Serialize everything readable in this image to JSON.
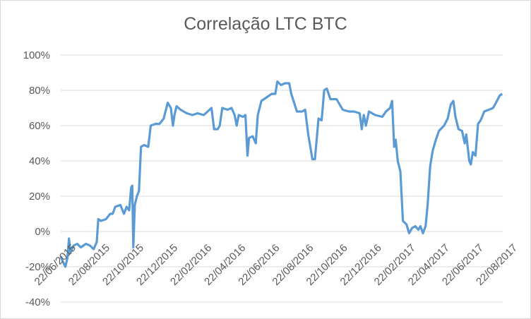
{
  "chart_data": {
    "type": "line",
    "title": "Correlação LTC BTC",
    "xlabel": "",
    "ylabel": "",
    "ylim": [
      -0.4,
      1.0
    ],
    "y_tick_labels": [
      "-40%",
      "-20%",
      "0%",
      "20%",
      "40%",
      "60%",
      "80%",
      "100%"
    ],
    "y_tick_values": [
      -0.4,
      -0.2,
      0.0,
      0.2,
      0.4,
      0.6,
      0.8,
      1.0
    ],
    "x_tick_labels": [
      "22/06/2015",
      "22/08/2015",
      "22/10/2015",
      "22/12/2015",
      "22/02/2016",
      "22/04/2016",
      "22/06/2016",
      "22/08/2016",
      "22/10/2016",
      "22/12/2016",
      "22/02/2017",
      "22/04/2017",
      "22/06/2017",
      "22/08/2017"
    ],
    "grid": true,
    "legend": "none",
    "line_color": "#5b9bd5",
    "x_range": [
      "2015-06-01",
      "2017-10-07"
    ],
    "series": [
      {
        "points": [
          [
            "2015-06-01",
            -0.14
          ],
          [
            "2015-06-05",
            -0.17
          ],
          [
            "2015-06-10",
            -0.2
          ],
          [
            "2015-06-14",
            -0.15
          ],
          [
            "2015-06-17",
            -0.04
          ],
          [
            "2015-06-20",
            -0.12
          ],
          [
            "2015-06-26",
            -0.08
          ],
          [
            "2015-07-03",
            -0.07
          ],
          [
            "2015-07-10",
            -0.09
          ],
          [
            "2015-07-20",
            -0.07
          ],
          [
            "2015-07-28",
            -0.08
          ],
          [
            "2015-08-04",
            -0.1
          ],
          [
            "2015-08-10",
            -0.06
          ],
          [
            "2015-08-13",
            0.07
          ],
          [
            "2015-08-18",
            0.06
          ],
          [
            "2015-08-28",
            0.07
          ],
          [
            "2015-09-05",
            0.1
          ],
          [
            "2015-09-10",
            0.1
          ],
          [
            "2015-09-15",
            0.14
          ],
          [
            "2015-09-25",
            0.15
          ],
          [
            "2015-10-02",
            0.1
          ],
          [
            "2015-10-07",
            0.14
          ],
          [
            "2015-10-12",
            0.12
          ],
          [
            "2015-10-16",
            0.25
          ],
          [
            "2015-10-18",
            0.26
          ],
          [
            "2015-10-20",
            -0.09
          ],
          [
            "2015-10-23",
            0.15
          ],
          [
            "2015-10-27",
            0.2
          ],
          [
            "2015-10-31",
            0.23
          ],
          [
            "2015-11-04",
            0.48
          ],
          [
            "2015-11-10",
            0.49
          ],
          [
            "2015-11-18",
            0.48
          ],
          [
            "2015-11-23",
            0.6
          ],
          [
            "2015-12-02",
            0.61
          ],
          [
            "2015-12-10",
            0.61
          ],
          [
            "2015-12-18",
            0.64
          ],
          [
            "2015-12-26",
            0.73
          ],
          [
            "2016-01-01",
            0.7
          ],
          [
            "2016-01-05",
            0.6
          ],
          [
            "2016-01-08",
            0.66
          ],
          [
            "2016-01-12",
            0.71
          ],
          [
            "2016-01-20",
            0.69
          ],
          [
            "2016-02-01",
            0.67
          ],
          [
            "2016-02-12",
            0.66
          ],
          [
            "2016-02-22",
            0.67
          ],
          [
            "2016-03-05",
            0.66
          ],
          [
            "2016-03-20",
            0.7
          ],
          [
            "2016-03-25",
            0.58
          ],
          [
            "2016-04-01",
            0.58
          ],
          [
            "2016-04-05",
            0.6
          ],
          [
            "2016-04-10",
            0.7
          ],
          [
            "2016-04-20",
            0.69
          ],
          [
            "2016-04-28",
            0.7
          ],
          [
            "2016-05-04",
            0.66
          ],
          [
            "2016-05-08",
            0.6
          ],
          [
            "2016-05-12",
            0.66
          ],
          [
            "2016-05-20",
            0.65
          ],
          [
            "2016-05-25",
            0.66
          ],
          [
            "2016-05-29",
            0.43
          ],
          [
            "2016-06-01",
            0.53
          ],
          [
            "2016-06-08",
            0.54
          ],
          [
            "2016-06-14",
            0.5
          ],
          [
            "2016-06-18",
            0.66
          ],
          [
            "2016-06-25",
            0.74
          ],
          [
            "2016-07-05",
            0.76
          ],
          [
            "2016-07-15",
            0.78
          ],
          [
            "2016-07-22",
            0.78
          ],
          [
            "2016-07-26",
            0.85
          ],
          [
            "2016-08-02",
            0.83
          ],
          [
            "2016-08-10",
            0.84
          ],
          [
            "2016-08-18",
            0.84
          ],
          [
            "2016-08-22",
            0.78
          ],
          [
            "2016-09-02",
            0.68
          ],
          [
            "2016-09-12",
            0.68
          ],
          [
            "2016-09-18",
            0.69
          ],
          [
            "2016-09-24",
            0.55
          ],
          [
            "2016-10-02",
            0.41
          ],
          [
            "2016-10-07",
            0.41
          ],
          [
            "2016-10-14",
            0.64
          ],
          [
            "2016-10-20",
            0.63
          ],
          [
            "2016-10-25",
            0.8
          ],
          [
            "2016-10-30",
            0.81
          ],
          [
            "2016-11-06",
            0.75
          ],
          [
            "2016-11-18",
            0.75
          ],
          [
            "2016-11-30",
            0.69
          ],
          [
            "2016-12-12",
            0.68
          ],
          [
            "2016-12-22",
            0.68
          ],
          [
            "2017-01-02",
            0.67
          ],
          [
            "2017-01-06",
            0.58
          ],
          [
            "2017-01-10",
            0.66
          ],
          [
            "2017-01-14",
            0.6
          ],
          [
            "2017-01-20",
            0.68
          ],
          [
            "2017-02-01",
            0.66
          ],
          [
            "2017-02-15",
            0.65
          ],
          [
            "2017-02-22",
            0.68
          ],
          [
            "2017-03-02",
            0.7
          ],
          [
            "2017-03-06",
            0.74
          ],
          [
            "2017-03-10",
            0.48
          ],
          [
            "2017-03-13",
            0.52
          ],
          [
            "2017-03-17",
            0.4
          ],
          [
            "2017-03-22",
            0.34
          ],
          [
            "2017-03-27",
            0.06
          ],
          [
            "2017-04-03",
            0.04
          ],
          [
            "2017-04-08",
            -0.01
          ],
          [
            "2017-04-14",
            0.02
          ],
          [
            "2017-04-20",
            0.03
          ],
          [
            "2017-04-26",
            0.01
          ],
          [
            "2017-04-30",
            0.03
          ],
          [
            "2017-05-05",
            -0.01
          ],
          [
            "2017-05-10",
            0.03
          ],
          [
            "2017-05-14",
            0.15
          ],
          [
            "2017-05-19",
            0.37
          ],
          [
            "2017-05-24",
            0.46
          ],
          [
            "2017-05-30",
            0.52
          ],
          [
            "2017-06-05",
            0.57
          ],
          [
            "2017-06-15",
            0.6
          ],
          [
            "2017-06-22",
            0.64
          ],
          [
            "2017-06-28",
            0.72
          ],
          [
            "2017-07-03",
            0.74
          ],
          [
            "2017-07-07",
            0.65
          ],
          [
            "2017-07-13",
            0.58
          ],
          [
            "2017-07-20",
            0.57
          ],
          [
            "2017-07-25",
            0.5
          ],
          [
            "2017-07-28",
            0.55
          ],
          [
            "2017-08-03",
            0.4
          ],
          [
            "2017-08-06",
            0.38
          ],
          [
            "2017-08-10",
            0.45
          ],
          [
            "2017-08-15",
            0.43
          ],
          [
            "2017-08-20",
            0.61
          ],
          [
            "2017-08-25",
            0.63
          ],
          [
            "2017-09-01",
            0.68
          ],
          [
            "2017-09-10",
            0.69
          ],
          [
            "2017-09-18",
            0.7
          ],
          [
            "2017-09-24",
            0.73
          ],
          [
            "2017-10-01",
            0.77
          ],
          [
            "2017-10-06",
            0.78
          ]
        ]
      }
    ]
  }
}
